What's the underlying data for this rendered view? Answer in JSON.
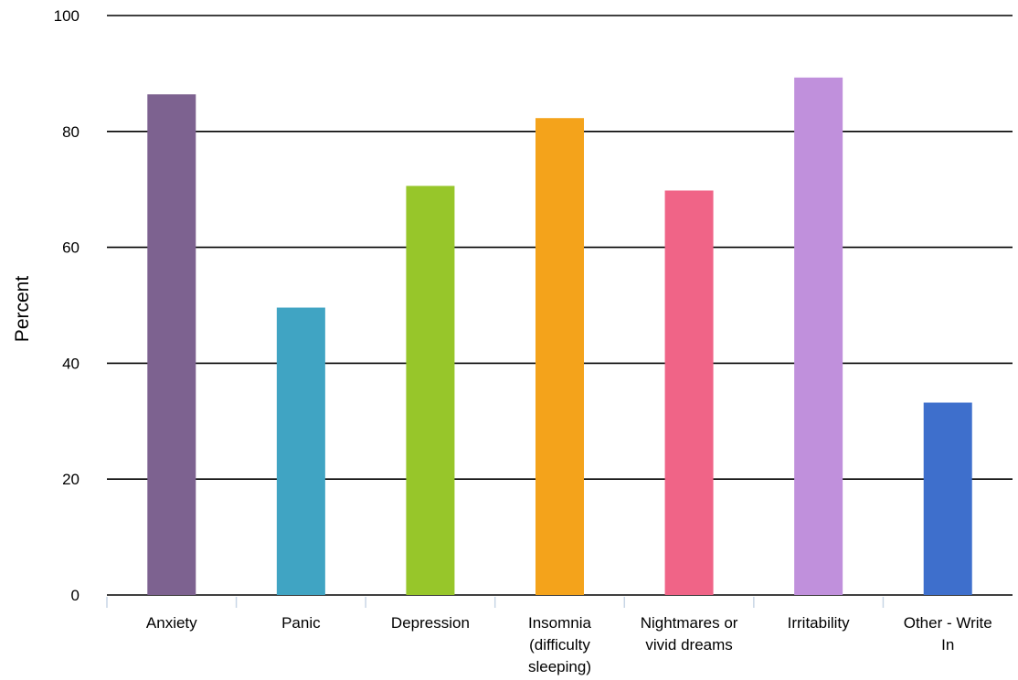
{
  "chart_data": {
    "type": "bar",
    "title": "",
    "xlabel": "",
    "ylabel": "Percent",
    "ylim": [
      0,
      100
    ],
    "yticks": [
      "0",
      "20",
      "40",
      "60",
      "80",
      "100"
    ],
    "grid": true,
    "categories": [
      [
        "Anxiety"
      ],
      [
        "Panic"
      ],
      [
        "Depression"
      ],
      [
        "Insomnia",
        "(difficulty",
        "sleeping)"
      ],
      [
        "Nightmares or",
        "vivid dreams"
      ],
      [
        "Irritability"
      ],
      [
        "Other - Write",
        "In"
      ]
    ],
    "values": [
      86.4,
      49.6,
      70.6,
      82.3,
      69.8,
      89.3,
      33.2
    ],
    "colors": [
      "#7d6290",
      "#40a4c3",
      "#97c62a",
      "#f4a31b",
      "#f06487",
      "#c090dc",
      "#3e6fcc"
    ]
  }
}
